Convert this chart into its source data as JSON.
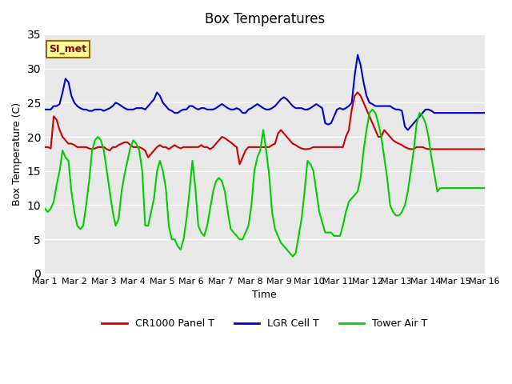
{
  "title": "Box Temperatures",
  "xlabel": "Time",
  "ylabel": "Box Temperature (C)",
  "ylim": [
    0,
    35
  ],
  "yticks": [
    0,
    5,
    10,
    15,
    20,
    25,
    30,
    35
  ],
  "background_color": "#e8e8e8",
  "plot_bg_color": "#e8e8e8",
  "fig_bg_color": "#ffffff",
  "grid_color": "#ffffff",
  "label_box": "SI_met",
  "series": {
    "panel": {
      "label": "CR1000 Panel T",
      "color": "#cc0000",
      "linewidth": 1.5
    },
    "lgr": {
      "label": "LGR Cell T",
      "color": "#0000cc",
      "linewidth": 1.5
    },
    "tower": {
      "label": "Tower Air T",
      "color": "#00cc00",
      "linewidth": 1.5
    }
  },
  "xtick_labels": [
    "Mar 1",
    "Mar 2",
    "Mar 3",
    "Mar 4",
    "Mar 5",
    "Mar 6",
    "Mar 7",
    "Mar 8",
    "Mar 9",
    "Mar 10",
    "Mar 11",
    "Mar 12",
    "Mar 13",
    "Mar 14",
    "Mar 15",
    "Mar 16"
  ],
  "panel_t": [
    18.5,
    18.5,
    18.3,
    23.0,
    22.5,
    21.0,
    20.0,
    19.5,
    19.0,
    19.0,
    18.8,
    18.5,
    18.5,
    18.5,
    18.5,
    18.3,
    18.2,
    18.3,
    18.5,
    18.5,
    18.5,
    18.2,
    18.0,
    18.5,
    18.5,
    18.8,
    19.0,
    19.2,
    19.2,
    18.8,
    18.5,
    18.5,
    18.5,
    18.3,
    18.0,
    17.0,
    17.5,
    18.0,
    18.5,
    18.8,
    18.5,
    18.5,
    18.2,
    18.5,
    18.8,
    18.5,
    18.3,
    18.5,
    18.5,
    18.5,
    18.5,
    18.5,
    18.5,
    18.8,
    18.5,
    18.5,
    18.2,
    18.5,
    19.0,
    19.5,
    20.0,
    19.8,
    19.5,
    19.2,
    18.8,
    18.5,
    16.0,
    17.0,
    18.0,
    18.5,
    18.5,
    18.5,
    18.5,
    18.5,
    18.5,
    18.5,
    18.5,
    18.8,
    19.0,
    20.5,
    21.0,
    20.5,
    20.0,
    19.5,
    19.0,
    18.8,
    18.5,
    18.3,
    18.2,
    18.2,
    18.3,
    18.5,
    18.5,
    18.5,
    18.5,
    18.5,
    18.5,
    18.5,
    18.5,
    18.5,
    18.5,
    18.5,
    20.0,
    21.0,
    24.0,
    26.0,
    26.5,
    26.0,
    25.0,
    24.0,
    23.0,
    22.0,
    21.0,
    20.0,
    20.0,
    21.0,
    20.5,
    20.0,
    19.5,
    19.2,
    19.0,
    18.8,
    18.5,
    18.3,
    18.2,
    18.2,
    18.5,
    18.5,
    18.5,
    18.3,
    18.2,
    18.2,
    18.2,
    18.2,
    18.2,
    18.2,
    18.2,
    18.2,
    18.2,
    18.2,
    18.2,
    18.2,
    18.2,
    18.2,
    18.2,
    18.2,
    18.2,
    18.2,
    18.2,
    18.2
  ],
  "lgr_t": [
    24.0,
    24.0,
    24.0,
    24.5,
    24.5,
    24.8,
    26.5,
    28.5,
    28.0,
    26.0,
    25.0,
    24.5,
    24.2,
    24.0,
    24.0,
    23.8,
    23.8,
    24.0,
    24.0,
    24.0,
    23.8,
    24.0,
    24.2,
    24.5,
    25.0,
    24.8,
    24.5,
    24.2,
    24.0,
    24.0,
    24.0,
    24.2,
    24.2,
    24.2,
    24.0,
    24.5,
    25.0,
    25.5,
    26.5,
    26.0,
    25.0,
    24.5,
    24.0,
    23.8,
    23.5,
    23.5,
    23.8,
    24.0,
    24.0,
    24.5,
    24.5,
    24.2,
    24.0,
    24.2,
    24.2,
    24.0,
    24.0,
    24.0,
    24.2,
    24.5,
    24.8,
    24.5,
    24.2,
    24.0,
    24.0,
    24.2,
    24.0,
    23.5,
    23.5,
    24.0,
    24.2,
    24.5,
    24.8,
    24.5,
    24.2,
    24.0,
    24.0,
    24.2,
    24.5,
    25.0,
    25.5,
    25.8,
    25.5,
    25.0,
    24.5,
    24.2,
    24.2,
    24.2,
    24.0,
    24.0,
    24.2,
    24.5,
    24.8,
    24.5,
    24.2,
    22.0,
    21.8,
    22.0,
    23.0,
    24.0,
    24.2,
    24.0,
    24.2,
    24.5,
    25.0,
    29.0,
    32.0,
    30.5,
    28.0,
    26.0,
    25.0,
    24.8,
    24.5,
    24.5,
    24.5,
    24.5,
    24.5,
    24.5,
    24.2,
    24.0,
    24.0,
    23.8,
    21.5,
    21.0,
    21.5,
    22.0,
    22.5,
    23.0,
    23.5,
    24.0,
    24.0,
    23.8,
    23.5,
    23.5,
    23.5,
    23.5,
    23.5,
    23.5,
    23.5,
    23.5,
    23.5,
    23.5,
    23.5,
    23.5,
    23.5,
    23.5,
    23.5,
    23.5,
    23.5,
    23.5
  ],
  "tower_t": [
    9.5,
    9.0,
    9.5,
    10.5,
    13.0,
    15.0,
    18.0,
    17.0,
    16.5,
    12.0,
    9.0,
    7.0,
    6.5,
    7.0,
    10.0,
    13.5,
    18.0,
    19.5,
    20.0,
    19.5,
    18.0,
    15.0,
    12.0,
    9.0,
    7.0,
    8.0,
    12.0,
    14.5,
    16.5,
    18.5,
    19.5,
    19.0,
    18.0,
    15.0,
    7.0,
    7.0,
    9.0,
    11.0,
    15.0,
    16.5,
    15.0,
    12.5,
    7.0,
    5.0,
    5.0,
    4.0,
    3.5,
    5.0,
    8.0,
    12.0,
    16.5,
    12.5,
    7.0,
    6.0,
    5.5,
    7.0,
    9.5,
    12.0,
    13.5,
    14.0,
    13.5,
    12.0,
    9.0,
    6.5,
    6.0,
    5.5,
    5.0,
    5.0,
    6.0,
    7.0,
    10.0,
    15.0,
    17.0,
    18.0,
    21.0,
    18.0,
    14.5,
    9.0,
    6.5,
    5.5,
    4.5,
    4.0,
    3.5,
    3.0,
    2.5,
    3.0,
    5.5,
    8.0,
    12.0,
    16.5,
    16.0,
    15.0,
    12.0,
    9.0,
    7.5,
    6.0,
    6.0,
    6.0,
    5.5,
    5.5,
    5.5,
    7.0,
    9.0,
    10.5,
    11.0,
    11.5,
    12.0,
    14.0,
    18.0,
    21.0,
    23.5,
    24.0,
    23.5,
    22.0,
    20.0,
    17.0,
    14.0,
    10.0,
    9.0,
    8.5,
    8.5,
    9.0,
    10.0,
    12.0,
    15.0,
    18.0,
    22.0,
    23.5,
    23.0,
    22.0,
    20.0,
    17.0,
    14.5,
    12.0,
    12.5,
    12.5,
    12.5,
    12.5,
    12.5,
    12.5,
    12.5,
    12.5,
    12.5,
    12.5,
    12.5,
    12.5,
    12.5,
    12.5,
    12.5,
    12.5
  ]
}
